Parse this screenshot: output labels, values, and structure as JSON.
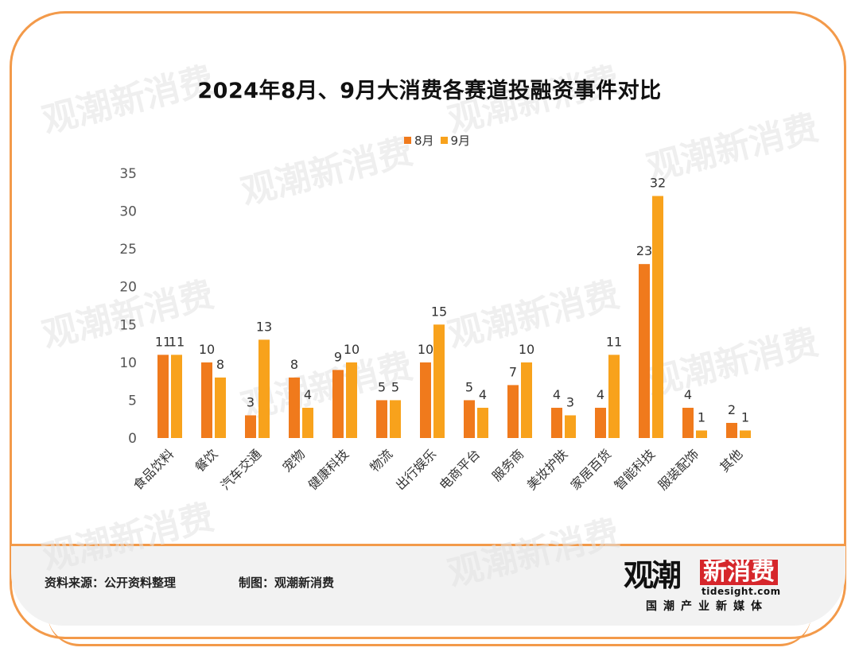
{
  "chart_data": {
    "type": "bar",
    "title": "2024年8月、9月大消费各赛道投融资事件对比",
    "categories": [
      "食品饮料",
      "餐饮",
      "汽车交通",
      "宠物",
      "健康科技",
      "物流",
      "出行娱乐",
      "电商平台",
      "服务商",
      "美妆护肤",
      "家居百货",
      "智能科技",
      "服装配饰",
      "其他"
    ],
    "series": [
      {
        "name": "8月",
        "color": "#f07a1c",
        "values": [
          11,
          10,
          3,
          8,
          9,
          5,
          10,
          5,
          7,
          4,
          4,
          23,
          4,
          2
        ]
      },
      {
        "name": "9月",
        "color": "#f8a21c",
        "values": [
          11,
          8,
          13,
          4,
          10,
          5,
          15,
          4,
          10,
          3,
          11,
          32,
          1,
          1
        ]
      }
    ],
    "yticks": [
      "0",
      "5",
      "10",
      "15",
      "20",
      "25",
      "30",
      "35"
    ],
    "ylim": [
      0,
      35
    ],
    "legend_position": "top-center",
    "grid": false
  },
  "footer": {
    "source": "资料来源：公开资料整理",
    "maker": "制图：观潮新消费"
  },
  "logo": {
    "main": "观潮",
    "highlight": "新消费",
    "domain": "tidesight.com",
    "tagline": "国潮产业新媒体"
  },
  "watermark": {
    "text": "观潮新消费"
  }
}
